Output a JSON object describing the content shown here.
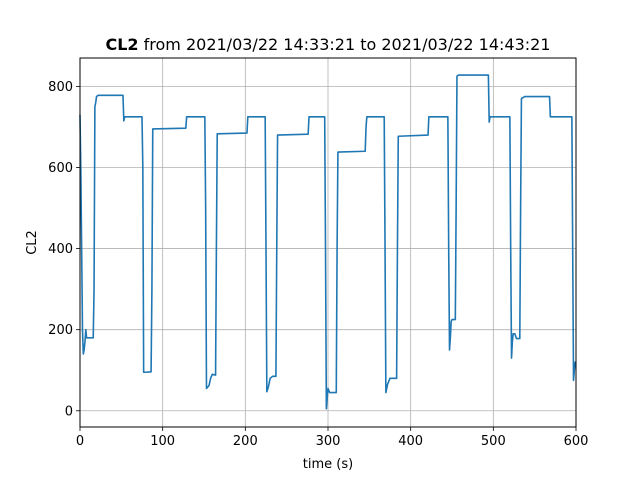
{
  "chart_data": {
    "type": "line",
    "title_bold": "CL2",
    "title_rest": " from 2021/03/22 14:33:21 to 2021/03/22 14:43:21",
    "xlabel": "time (s)",
    "ylabel": "CL2",
    "xlim": [
      0,
      600
    ],
    "ylim": [
      -40,
      870
    ],
    "xticks": [
      0,
      100,
      200,
      300,
      400,
      500,
      600
    ],
    "yticks": [
      0,
      200,
      400,
      600,
      800
    ],
    "grid": true,
    "series": [
      {
        "color": "#1f77b4",
        "points": [
          [
            0,
            730
          ],
          [
            1,
            590
          ],
          [
            2,
            400
          ],
          [
            3,
            200
          ],
          [
            4,
            140
          ],
          [
            5,
            150
          ],
          [
            6,
            170
          ],
          [
            7,
            200
          ],
          [
            8,
            180
          ],
          [
            12,
            180
          ],
          [
            16,
            180
          ],
          [
            17,
            300
          ],
          [
            18,
            750
          ],
          [
            19,
            760
          ],
          [
            20,
            775
          ],
          [
            22,
            778
          ],
          [
            52,
            778
          ],
          [
            53,
            715
          ],
          [
            54,
            725
          ],
          [
            75,
            725
          ],
          [
            76,
            600
          ],
          [
            77,
            95
          ],
          [
            80,
            95
          ],
          [
            86,
            96
          ],
          [
            87,
            300
          ],
          [
            88,
            695
          ],
          [
            128,
            697
          ],
          [
            129,
            725
          ],
          [
            151,
            725
          ],
          [
            152,
            500
          ],
          [
            153,
            55
          ],
          [
            156,
            62
          ],
          [
            158,
            80
          ],
          [
            160,
            90
          ],
          [
            164,
            88
          ],
          [
            165,
            400
          ],
          [
            166,
            683
          ],
          [
            202,
            685
          ],
          [
            203,
            725
          ],
          [
            224,
            725
          ],
          [
            225,
            400
          ],
          [
            226,
            47
          ],
          [
            228,
            60
          ],
          [
            230,
            80
          ],
          [
            233,
            85
          ],
          [
            237,
            85
          ],
          [
            238,
            400
          ],
          [
            239,
            680
          ],
          [
            276,
            682
          ],
          [
            277,
            725
          ],
          [
            296,
            725
          ],
          [
            297,
            400
          ],
          [
            298,
            5
          ],
          [
            299,
            30
          ],
          [
            300,
            55
          ],
          [
            302,
            45
          ],
          [
            310,
            45
          ],
          [
            311,
            400
          ],
          [
            312,
            638
          ],
          [
            345,
            640
          ],
          [
            346,
            700
          ],
          [
            347,
            725
          ],
          [
            368,
            725
          ],
          [
            369,
            400
          ],
          [
            370,
            45
          ],
          [
            372,
            65
          ],
          [
            375,
            80
          ],
          [
            383,
            80
          ],
          [
            384,
            400
          ],
          [
            385,
            677
          ],
          [
            421,
            680
          ],
          [
            422,
            725
          ],
          [
            445,
            725
          ],
          [
            446,
            400
          ],
          [
            447,
            150
          ],
          [
            448,
            180
          ],
          [
            449,
            220
          ],
          [
            450,
            225
          ],
          [
            454,
            225
          ],
          [
            455,
            500
          ],
          [
            456,
            825
          ],
          [
            458,
            828
          ],
          [
            494,
            828
          ],
          [
            495,
            712
          ],
          [
            496,
            725
          ],
          [
            520,
            725
          ],
          [
            521,
            400
          ],
          [
            522,
            130
          ],
          [
            523,
            170
          ],
          [
            524,
            190
          ],
          [
            526,
            190
          ],
          [
            528,
            178
          ],
          [
            532,
            178
          ],
          [
            533,
            500
          ],
          [
            534,
            770
          ],
          [
            538,
            775
          ],
          [
            568,
            775
          ],
          [
            569,
            725
          ],
          [
            595,
            725
          ],
          [
            596,
            400
          ],
          [
            597,
            75
          ],
          [
            598,
            100
          ],
          [
            599,
            120
          ],
          [
            600,
            120
          ]
        ]
      }
    ]
  }
}
